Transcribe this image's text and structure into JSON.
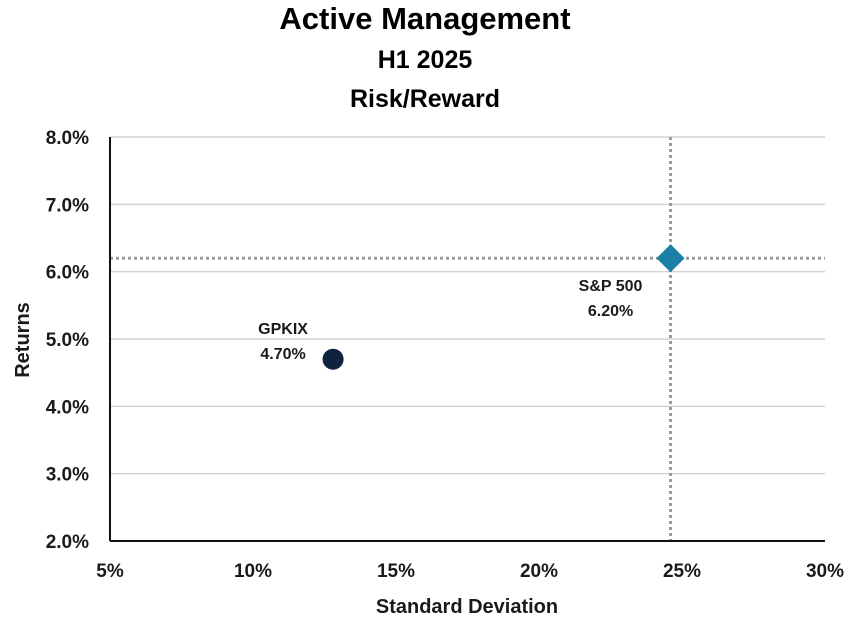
{
  "chart_data": {
    "type": "scatter",
    "title": "Active Management",
    "subtitle_lines": [
      "H1 2025",
      "Risk/Reward"
    ],
    "xlabel": "Standard Deviation",
    "ylabel": "Returns",
    "xlim": [
      5,
      30
    ],
    "ylim": [
      2.0,
      8.0
    ],
    "x_ticks": [
      5,
      10,
      15,
      20,
      25,
      30
    ],
    "x_tick_labels": [
      "5%",
      "10%",
      "15%",
      "20%",
      "25%",
      "30%"
    ],
    "y_ticks": [
      2,
      3,
      4,
      5,
      6,
      7,
      8
    ],
    "y_tick_labels": [
      "2.0%",
      "3.0%",
      "4.0%",
      "5.0%",
      "6.0%",
      "7.0%",
      "8.0%"
    ],
    "grid": "horizontal",
    "points": [
      {
        "label": "GPKIX",
        "value_label": "4.70%",
        "x": 12.8,
        "y": 4.7,
        "marker": "circle",
        "color": "#0f2340"
      },
      {
        "label": "S&P 500",
        "value_label": "6.20%",
        "x": 24.6,
        "y": 6.2,
        "marker": "diamond",
        "color": "#1b7fa6"
      }
    ],
    "reference_lines": {
      "x": 24.6,
      "y": 6.2,
      "style": "dotted",
      "color": "#9a9a9a"
    }
  }
}
